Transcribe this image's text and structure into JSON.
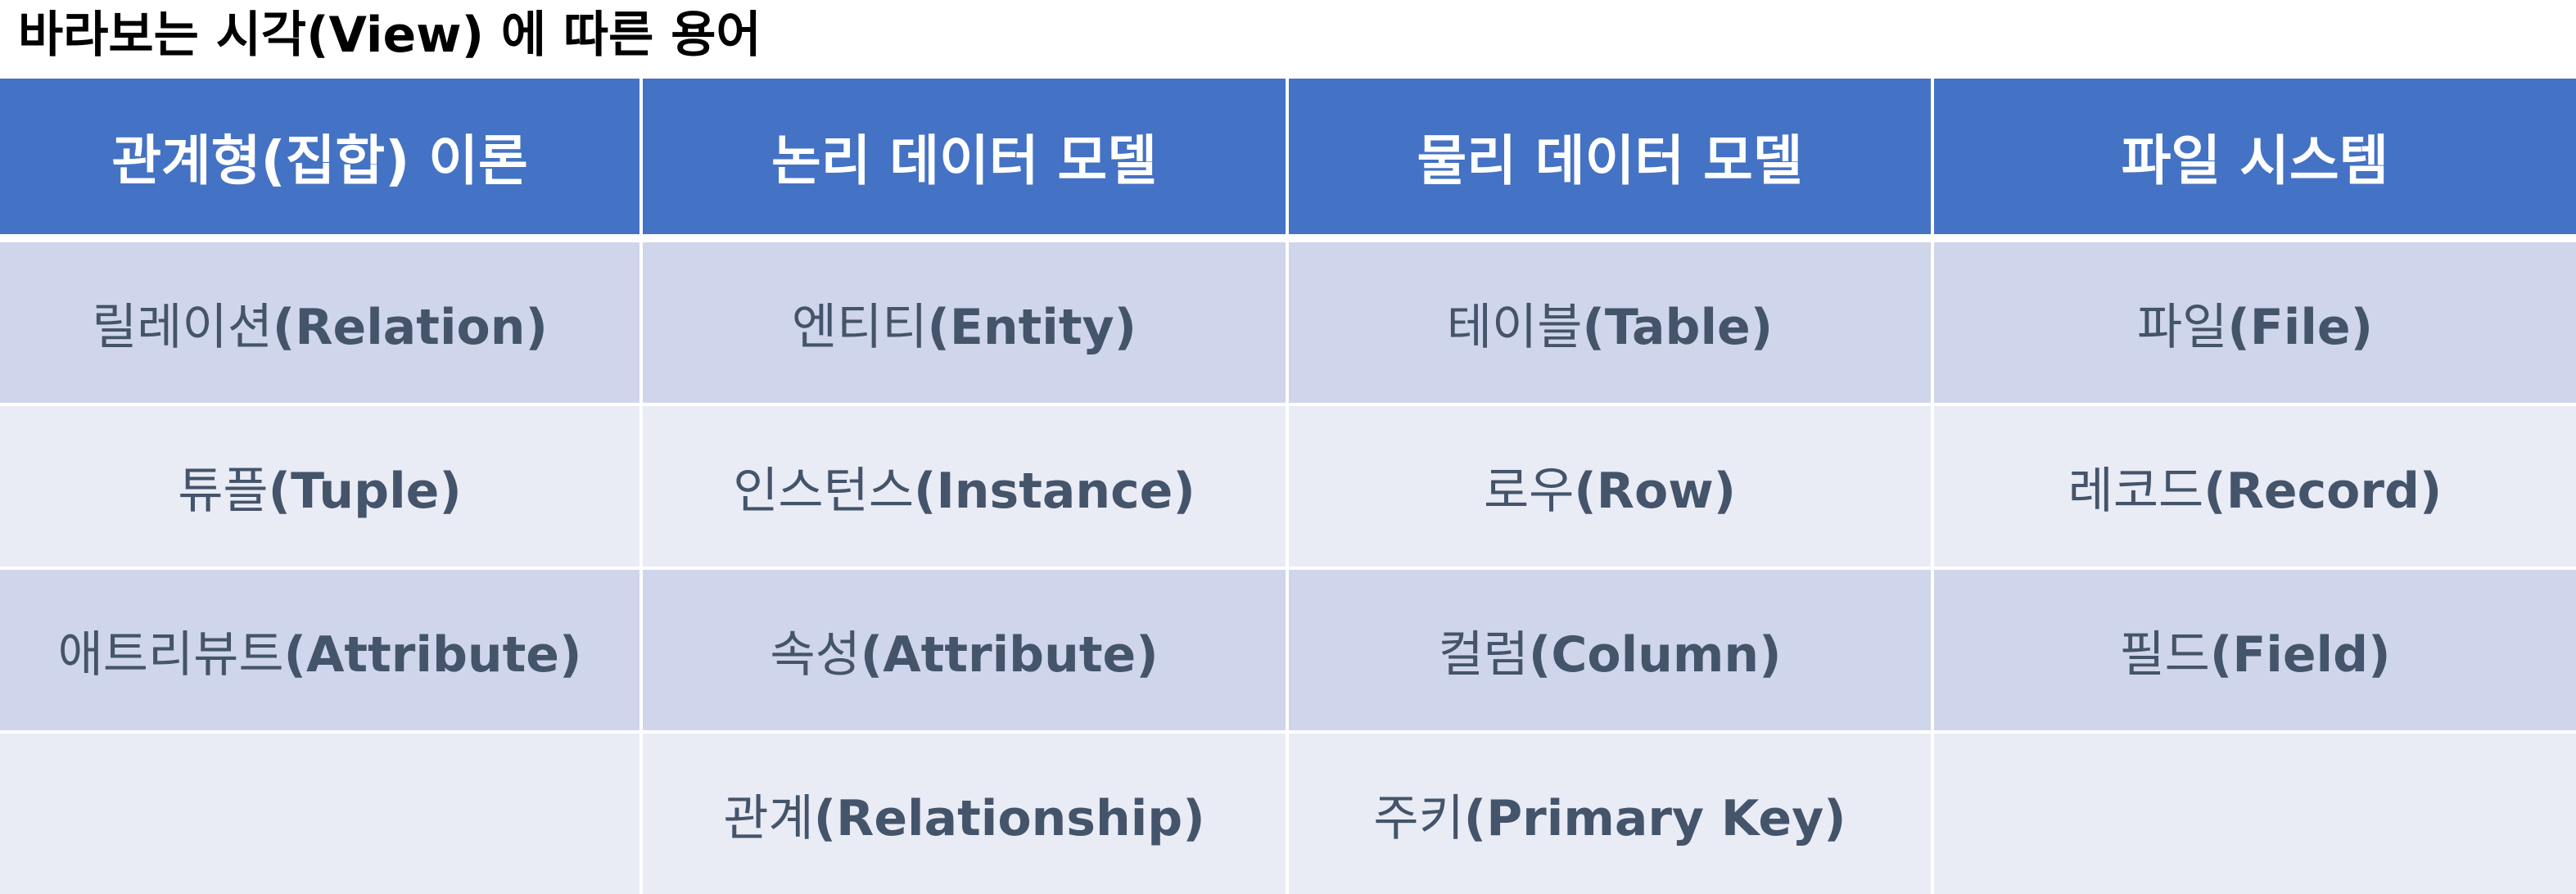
{
  "title": "바라보는 시각(View) 에 따른 용어",
  "columns": [
    "관계형(집합) 이론",
    "논리 데이터 모델",
    "물리 데이터 모델",
    "파일 시스템"
  ],
  "rows": [
    [
      {
        "ko": "릴레이션",
        "en": "(Relation)"
      },
      {
        "ko": "엔티티",
        "en": "(Entity)"
      },
      {
        "ko": "테이블",
        "en": "(Table)"
      },
      {
        "ko": "파일",
        "en": "(File)"
      }
    ],
    [
      {
        "ko": "튜플",
        "en": "(Tuple)"
      },
      {
        "ko": "인스턴스",
        "en": "(Instance)"
      },
      {
        "ko": "로우",
        "en": "(Row)"
      },
      {
        "ko": "레코드",
        "en": "(Record)"
      }
    ],
    [
      {
        "ko": "애트리뷰트",
        "en": "(Attribute)"
      },
      {
        "ko": "속성",
        "en": "(Attribute)"
      },
      {
        "ko": "컬럼",
        "en": "(Column)"
      },
      {
        "ko": "필드",
        "en": "(Field)"
      }
    ],
    [
      {
        "ko": "",
        "en": ""
      },
      {
        "ko": "관계",
        "en": "(Relationship)"
      },
      {
        "ko": "주키",
        "en": "(Primary Key)"
      },
      {
        "ko": "",
        "en": ""
      }
    ]
  ],
  "colors": {
    "header_bg": "#4472c4",
    "header_text": "#ffffff",
    "row_odd_bg": "#cfd5ea",
    "row_even_bg": "#e9ebf5",
    "cell_text": "#44546a"
  }
}
